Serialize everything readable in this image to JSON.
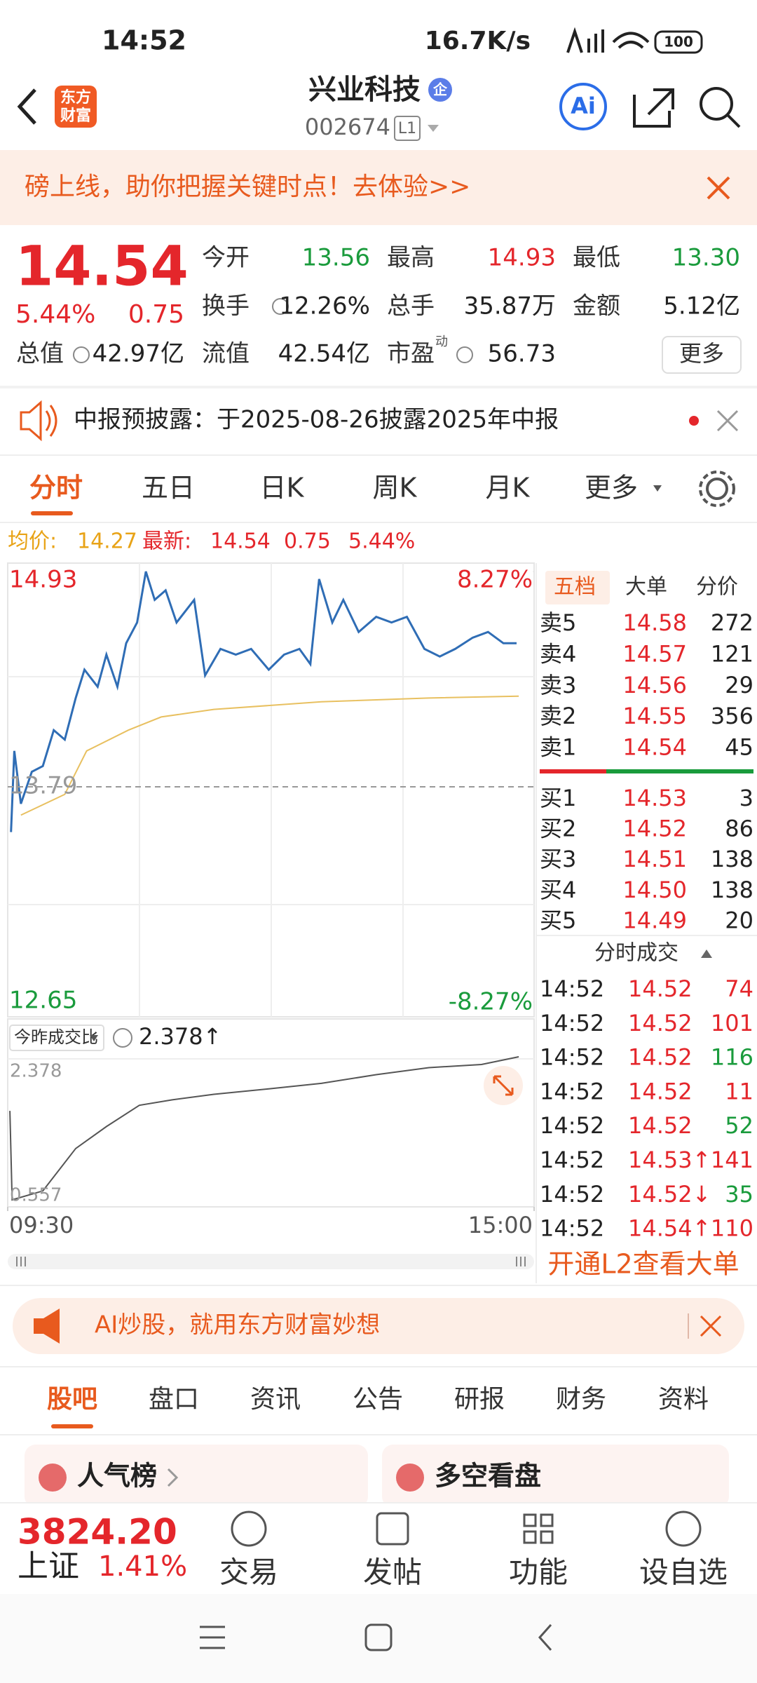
{
  "status_bar": {
    "time": "14:52",
    "speed": "16.7K/s",
    "battery": "100"
  },
  "header": {
    "logo": [
      "东方",
      "财富"
    ],
    "title": "兴业科技",
    "badge": "企",
    "code": "002674",
    "level": "L1",
    "ai": "Ai"
  },
  "banner": {
    "text": "磅上线，助你把握关键时点！去体验>>"
  },
  "quote": {
    "price": "14.54",
    "change_pct": "5.44%",
    "change": "0.75",
    "fields": [
      {
        "label": "今开",
        "value": "13.56",
        "color": "#1a9b3c"
      },
      {
        "label": "最高",
        "value": "14.93",
        "color": "#e4262b"
      },
      {
        "label": "最低",
        "value": "13.30",
        "color": "#1a9b3c"
      },
      {
        "label": "换手",
        "value": "12.26%",
        "color": "#222222"
      },
      {
        "label": "总手",
        "value": "35.87万",
        "color": "#222222"
      },
      {
        "label": "金额",
        "value": "5.12亿",
        "color": "#222222"
      },
      {
        "label": "总值",
        "value": "42.97亿",
        "color": "#222222"
      },
      {
        "label": "流值",
        "value": "42.54亿",
        "color": "#222222"
      },
      {
        "label": "市盈",
        "value": "56.73",
        "color": "#222222"
      }
    ],
    "pe_note": "动",
    "more": "更多"
  },
  "notice": {
    "text": "中报预披露：于2025-08-26披露2025年中报"
  },
  "chart_tabs": [
    "分时",
    "五日",
    "日K",
    "周K",
    "月K",
    "更多"
  ],
  "info": {
    "avg_label": "均价:",
    "avg": "14.27",
    "latest_label": "最新:",
    "latest": "14.54",
    "change": "0.75",
    "pct": "5.44%"
  },
  "chart_data": [
    {
      "type": "line",
      "xlim": [
        0,
        240
      ],
      "xticks": [
        {
          "value": 0,
          "label": "09:30"
        },
        {
          "value": 240,
          "label": "15:00"
        }
      ],
      "ylim": [
        12.65,
        14.93
      ],
      "yticks": [
        12.65,
        13.79,
        14.93
      ],
      "y2lim": [
        -8.27,
        8.27
      ],
      "y2ticks": [
        {
          "value": -8.27,
          "label": "-8.27%"
        },
        {
          "value": 8.27,
          "label": "8.27%"
        }
      ],
      "series": [
        {
          "name": "最新",
          "color": "#2f6db5",
          "x": [
            1.5,
            3,
            6,
            11,
            16,
            21,
            26,
            31,
            35,
            41,
            45,
            50,
            54,
            59,
            63,
            67,
            72,
            77,
            85,
            90,
            97,
            104,
            111,
            119,
            126,
            133,
            138,
            142,
            148,
            153,
            160,
            168,
            175,
            182,
            190,
            197,
            204,
            212,
            219,
            226,
            232
          ],
          "values": [
            13.55,
            13.98,
            13.7,
            13.87,
            13.9,
            14.09,
            14.04,
            14.26,
            14.41,
            14.32,
            14.49,
            14.32,
            14.55,
            14.66,
            14.93,
            14.78,
            14.83,
            14.66,
            14.78,
            14.38,
            14.52,
            14.49,
            14.52,
            14.41,
            14.49,
            14.52,
            14.44,
            14.89,
            14.66,
            14.78,
            14.61,
            14.69,
            14.66,
            14.69,
            14.52,
            14.48,
            14.52,
            14.58,
            14.61,
            14.55,
            14.55
          ]
        },
        {
          "name": "均价",
          "color": "#e8c060",
          "x": [
            6,
            26,
            36,
            55,
            70,
            94,
            143,
            192,
            233
          ],
          "values": [
            13.64,
            13.75,
            13.98,
            14.09,
            14.16,
            14.2,
            14.24,
            14.26,
            14.27
          ]
        }
      ]
    },
    {
      "type": "line",
      "title": "今昨成交比",
      "value_label": "2.378↑",
      "xlim": [
        0,
        240
      ],
      "ylim": [
        0.557,
        2.378
      ],
      "yticks": [
        0.557,
        2.378
      ],
      "series": [
        {
          "name": "今昨成交比",
          "color": "#555555",
          "x": [
            1,
            2,
            16,
            31,
            45,
            60,
            75,
            94,
            119,
            143,
            168,
            192,
            216,
            233
          ],
          "values": [
            1.69,
            0.557,
            0.67,
            1.21,
            1.49,
            1.76,
            1.83,
            1.9,
            1.97,
            2.04,
            2.15,
            2.24,
            2.28,
            2.378
          ]
        }
      ]
    }
  ],
  "order_book": {
    "tabs": [
      "五档",
      "大单",
      "分价"
    ],
    "asks": [
      {
        "label": "卖5",
        "price": "14.58",
        "volume": "272"
      },
      {
        "label": "卖4",
        "price": "14.57",
        "volume": "121"
      },
      {
        "label": "卖3",
        "price": "14.56",
        "volume": "29"
      },
      {
        "label": "卖2",
        "price": "14.55",
        "volume": "356"
      },
      {
        "label": "卖1",
        "price": "14.54",
        "volume": "45"
      }
    ],
    "bids": [
      {
        "label": "买1",
        "price": "14.53",
        "volume": "3"
      },
      {
        "label": "买2",
        "price": "14.52",
        "volume": "86"
      },
      {
        "label": "买3",
        "price": "14.51",
        "volume": "138"
      },
      {
        "label": "买4",
        "price": "14.50",
        "volume": "138"
      },
      {
        "label": "买5",
        "price": "14.49",
        "volume": "20"
      }
    ]
  },
  "trades": {
    "title": "分时成交",
    "rows": [
      {
        "time": "14:52",
        "price": "14.52",
        "volume": "74",
        "color": "#e4262b"
      },
      {
        "time": "14:52",
        "price": "14.52",
        "volume": "101",
        "color": "#e4262b"
      },
      {
        "time": "14:52",
        "price": "14.52",
        "volume": "116",
        "color": "#1a9b3c"
      },
      {
        "time": "14:52",
        "price": "14.52",
        "volume": "11",
        "color": "#e4262b"
      },
      {
        "time": "14:52",
        "price": "14.52",
        "volume": "52",
        "color": "#1a9b3c"
      },
      {
        "time": "14:52",
        "price": "14.53↑",
        "volume": "141",
        "color": "#e4262b"
      },
      {
        "time": "14:52",
        "price": "14.52↓",
        "volume": "35",
        "color": "#1a9b3c"
      },
      {
        "time": "14:52",
        "price": "14.54↑",
        "volume": "110",
        "color": "#e4262b"
      }
    ]
  },
  "l2": "开通L2查看大单",
  "ad": "AI炒股，就用东方财富妙想",
  "bottom_tabs": [
    "股吧",
    "盘口",
    "资讯",
    "公告",
    "研报",
    "财务",
    "资料"
  ],
  "cards": [
    "人气榜",
    "多空看盘"
  ],
  "index": {
    "value": "3824.20",
    "name": "上证",
    "pct": "1.41%"
  },
  "nav": [
    "交易",
    "发帖",
    "功能",
    "设自选"
  ]
}
